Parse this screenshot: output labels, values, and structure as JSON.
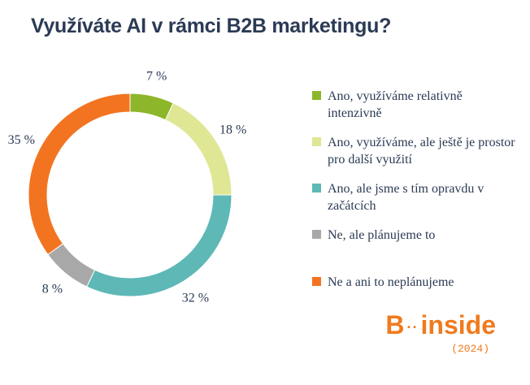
{
  "title": "Využíváte AI v rámci B2B marketingu?",
  "chart_data": {
    "type": "pie",
    "donut": true,
    "title": "Využíváte AI v rámci B2B marketingu?",
    "legend_position": "right",
    "slices": [
      {
        "label": "Ano, využíváme relativně intenzivně",
        "value": 7,
        "value_label": "7 %",
        "color": "#8db62a"
      },
      {
        "label": "Ano, využíváme, ale ještě je prostor pro další využití",
        "value": 18,
        "value_label": "18 %",
        "color": "#dfe795"
      },
      {
        "label": "Ano, ale jsme s tím opravdu v začátcích",
        "value": 32,
        "value_label": "32 %",
        "color": "#5db8b6"
      },
      {
        "label": "Ne, ale plánujeme to",
        "value": 8,
        "value_label": "8 %",
        "color": "#a8a8a8"
      },
      {
        "label": "Ne a ani to neplánujeme",
        "value": 35,
        "value_label": "35 %",
        "color": "#f27421"
      }
    ]
  },
  "brand": {
    "name_left": "B",
    "dots": "··",
    "name_right": "inside",
    "year": "(2024)"
  }
}
